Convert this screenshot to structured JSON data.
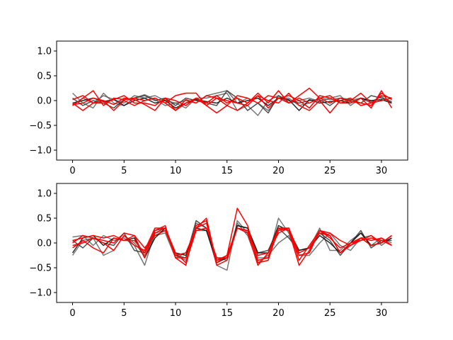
{
  "chart_data": [
    {
      "type": "line",
      "title": "",
      "xlabel": "",
      "ylabel": "",
      "xlim": [
        -1.55,
        32.55
      ],
      "ylim": [
        -1.2,
        1.2
      ],
      "xticks": [
        0,
        5,
        10,
        15,
        20,
        25,
        30
      ],
      "xtick_labels": [
        "0",
        "5",
        "10",
        "15",
        "20",
        "25",
        "30"
      ],
      "yticks": [
        -1.0,
        -0.5,
        0.0,
        0.5,
        1.0
      ],
      "ytick_labels": [
        "−1.0",
        "−0.5",
        "0.0",
        "0.5",
        "1.0"
      ],
      "grid": false,
      "x": [
        0,
        1,
        2,
        3,
        4,
        5,
        6,
        7,
        8,
        9,
        10,
        11,
        12,
        13,
        14,
        15,
        16,
        17,
        18,
        19,
        20,
        21,
        22,
        23,
        24,
        25,
        26,
        27,
        28,
        29,
        30,
        31
      ],
      "series": [
        {
          "color": "#555555",
          "opacity": 0.8,
          "values": [
            0.15,
            -0.05,
            -0.15,
            0.15,
            -0.05,
            -0.1,
            0.05,
            0.12,
            0.02,
            -0.1,
            -0.05,
            0.0,
            -0.05,
            0.1,
            0.15,
            0.2,
            -0.05,
            0.05,
            -0.05,
            -0.2,
            0.05,
            0.05,
            -0.1,
            -0.05,
            0.05,
            0.02,
            0.05,
            0.0,
            0.05,
            -0.05,
            0.0,
            0.05
          ]
        },
        {
          "color": "#555555",
          "opacity": 0.8,
          "values": [
            -0.1,
            0.05,
            -0.05,
            0.1,
            0.02,
            -0.05,
            0.1,
            0.05,
            0.1,
            0.0,
            -0.05,
            -0.15,
            0.05,
            0.05,
            0.1,
            0.15,
            -0.2,
            -0.1,
            -0.3,
            0.0,
            0.1,
            -0.05,
            0.0,
            0.05,
            -0.02,
            0.05,
            0.1,
            -0.1,
            0.05,
            -0.02,
            0.08,
            -0.05
          ]
        },
        {
          "color": "#333333",
          "opacity": 0.85,
          "values": [
            0.05,
            -0.1,
            0.0,
            -0.05,
            -0.15,
            0.02,
            0.05,
            0.1,
            0.0,
            0.05,
            -0.1,
            0.05,
            0.0,
            -0.05,
            -0.1,
            0.2,
            0.05,
            -0.2,
            -0.05,
            -0.25,
            0.1,
            0.0,
            -0.05,
            0.0,
            0.02,
            -0.1,
            0.05,
            0.02,
            -0.05,
            0.1,
            0.05,
            -0.02
          ]
        },
        {
          "color": "#111111",
          "opacity": 0.9,
          "values": [
            -0.05,
            0.0,
            0.05,
            -0.02,
            0.02,
            -0.1,
            0.0,
            0.05,
            -0.05,
            0.0,
            -0.15,
            -0.05,
            0.02,
            -0.02,
            -0.05,
            0.05,
            -0.05,
            0.0,
            0.05,
            -0.1,
            0.05,
            0.02,
            -0.2,
            0.02,
            -0.05,
            -0.02,
            0.0,
            -0.05,
            0.05,
            0.0,
            0.02,
            -0.05
          ]
        },
        {
          "color": "#ff0000",
          "opacity": 1,
          "values": [
            -0.05,
            -0.2,
            -0.05,
            0.0,
            -0.2,
            0.0,
            -0.1,
            0.0,
            0.05,
            -0.05,
            0.1,
            0.15,
            0.15,
            -0.1,
            -0.25,
            -0.1,
            -0.2,
            -0.05,
            0.15,
            -0.05,
            0.2,
            -0.05,
            0.1,
            0.25,
            0.05,
            0.1,
            -0.05,
            -0.05,
            0.05,
            -0.15,
            0.2,
            -0.15
          ]
        },
        {
          "color": "#ff0000",
          "opacity": 1,
          "values": [
            0.02,
            0.1,
            -0.05,
            -0.05,
            0.02,
            0.1,
            -0.05,
            -0.05,
            -0.1,
            0.05,
            -0.2,
            0.02,
            -0.05,
            0.1,
            0.05,
            -0.1,
            0.1,
            0.05,
            -0.05,
            0.1,
            0.05,
            0.1,
            0.0,
            -0.15,
            0.1,
            0.05,
            -0.05,
            0.0,
            0.15,
            -0.05,
            0.1,
            0.05
          ]
        },
        {
          "color": "#ff0000",
          "opacity": 1,
          "values": [
            -0.1,
            0.05,
            0.2,
            -0.1,
            0.05,
            0.02,
            0.05,
            0.0,
            0.05,
            -0.05,
            -0.2,
            -0.05,
            0.05,
            -0.1,
            0.05,
            0.0,
            -0.05,
            -0.1,
            0.1,
            0.0,
            -0.05,
            0.15,
            -0.1,
            -0.2,
            0.0,
            -0.25,
            0.0,
            0.05,
            -0.1,
            -0.05,
            0.0,
            0.05
          ]
        },
        {
          "color": "#ff0000",
          "opacity": 1,
          "values": [
            -0.08,
            -0.05,
            0.05,
            0.0,
            -0.08,
            0.05,
            0.02,
            -0.08,
            -0.2,
            0.05,
            0.0,
            -0.1,
            0.05,
            -0.05,
            0.1,
            -0.05,
            0.05,
            -0.05,
            0.1,
            -0.15,
            0.05,
            -0.05,
            0.05,
            -0.05,
            0.05,
            -0.05,
            0.05,
            -0.02,
            -0.05,
            -0.1,
            0.15,
            0.02
          ]
        }
      ]
    },
    {
      "type": "line",
      "title": "",
      "xlabel": "",
      "ylabel": "",
      "xlim": [
        -1.55,
        32.55
      ],
      "ylim": [
        -1.2,
        1.2
      ],
      "xticks": [
        0,
        5,
        10,
        15,
        20,
        25,
        30
      ],
      "xtick_labels": [
        "0",
        "5",
        "10",
        "15",
        "20",
        "25",
        "30"
      ],
      "yticks": [
        -1.0,
        -0.5,
        0.0,
        0.5,
        1.0
      ],
      "ytick_labels": [
        "−1.0",
        "−0.5",
        "0.0",
        "0.5",
        "1.0"
      ],
      "grid": false,
      "x": [
        0,
        1,
        2,
        3,
        4,
        5,
        6,
        7,
        8,
        9,
        10,
        11,
        12,
        13,
        14,
        15,
        16,
        17,
        18,
        19,
        20,
        21,
        22,
        23,
        24,
        25,
        26,
        27,
        28,
        29,
        30,
        31
      ],
      "series": [
        {
          "color": "#555555",
          "opacity": 0.8,
          "values": [
            0.12,
            0.15,
            -0.05,
            0.15,
            0.05,
            0.1,
            -0.05,
            -0.45,
            0.2,
            0.25,
            -0.25,
            -0.35,
            0.4,
            0.3,
            -0.45,
            -0.55,
            0.45,
            0.2,
            -0.3,
            -0.3,
            0.5,
            0.2,
            -0.2,
            -0.1,
            0.3,
            -0.15,
            -0.15,
            0.05,
            0.2,
            -0.05,
            0.1,
            0.0
          ]
        },
        {
          "color": "#555555",
          "opacity": 0.8,
          "values": [
            -0.25,
            0.05,
            0.1,
            -0.25,
            -0.15,
            0.15,
            0.0,
            -0.25,
            0.15,
            0.2,
            -0.3,
            -0.2,
            0.25,
            0.25,
            -0.3,
            -0.35,
            0.4,
            0.15,
            -0.4,
            -0.25,
            0.0,
            0.15,
            -0.25,
            -0.25,
            0.0,
            0.2,
            -0.05,
            -0.15,
            0.1,
            0.15,
            -0.05,
            0.1
          ]
        },
        {
          "color": "#333333",
          "opacity": 0.85,
          "values": [
            0.05,
            -0.1,
            0.1,
            0.0,
            -0.05,
            0.2,
            -0.15,
            -0.2,
            0.25,
            0.3,
            -0.25,
            -0.3,
            0.45,
            0.3,
            -0.35,
            -0.3,
            0.35,
            0.3,
            -0.2,
            -0.15,
            0.3,
            0.1,
            -0.15,
            -0.1,
            0.2,
            0.05,
            -0.25,
            0.0,
            0.25,
            -0.1,
            0.05,
            0.05
          ]
        },
        {
          "color": "#111111",
          "opacity": 0.9,
          "values": [
            -0.2,
            0.1,
            0.15,
            -0.05,
            0.1,
            0.05,
            0.1,
            -0.3,
            0.1,
            0.3,
            -0.2,
            -0.25,
            0.3,
            0.25,
            -0.4,
            -0.3,
            0.35,
            0.3,
            -0.2,
            -0.2,
            0.35,
            0.25,
            -0.15,
            -0.1,
            0.15,
            0.0,
            -0.2,
            0.0,
            0.2,
            -0.05,
            0.0,
            0.1
          ]
        },
        {
          "color": "#ff0000",
          "opacity": 1,
          "values": [
            0.0,
            0.15,
            0.1,
            0.05,
            0.0,
            0.2,
            0.15,
            -0.3,
            0.25,
            0.35,
            -0.3,
            -0.45,
            0.35,
            0.45,
            -0.45,
            -0.35,
            0.3,
            0.2,
            -0.45,
            -0.2,
            0.3,
            0.3,
            -0.2,
            -0.1,
            0.2,
            0.15,
            -0.2,
            0.0,
            0.1,
            -0.05,
            0.0,
            0.15
          ]
        },
        {
          "color": "#ff0000",
          "opacity": 1,
          "values": [
            -0.1,
            0.05,
            -0.1,
            -0.2,
            0.1,
            0.05,
            0.15,
            -0.1,
            0.15,
            0.25,
            -0.25,
            -0.2,
            0.3,
            0.4,
            -0.35,
            -0.25,
            0.7,
            0.35,
            -0.4,
            -0.35,
            0.3,
            0.25,
            -0.45,
            -0.15,
            0.25,
            0.2,
            0.05,
            -0.05,
            0.05,
            0.1,
            0.05,
            -0.05
          ]
        },
        {
          "color": "#ff0000",
          "opacity": 1,
          "values": [
            0.05,
            0.1,
            0.15,
            0.1,
            0.15,
            0.05,
            0.05,
            -0.2,
            0.2,
            0.3,
            -0.3,
            -0.3,
            0.3,
            0.5,
            -0.4,
            -0.25,
            0.3,
            0.25,
            -0.35,
            -0.3,
            0.25,
            0.3,
            -0.25,
            -0.2,
            0.25,
            0.1,
            -0.1,
            0.0,
            0.05,
            0.15,
            0.0,
            0.15
          ]
        },
        {
          "color": "#ff0000",
          "opacity": 1,
          "values": [
            -0.05,
            0.0,
            0.1,
            0.0,
            -0.15,
            0.15,
            -0.05,
            -0.15,
            0.3,
            0.3,
            -0.2,
            -0.4,
            0.25,
            0.3,
            -0.3,
            -0.3,
            0.3,
            0.25,
            -0.25,
            -0.2,
            0.2,
            0.3,
            -0.35,
            -0.05,
            0.25,
            0.15,
            -0.2,
            -0.05,
            0.1,
            0.05,
            0.1,
            -0.05
          ]
        }
      ]
    }
  ]
}
